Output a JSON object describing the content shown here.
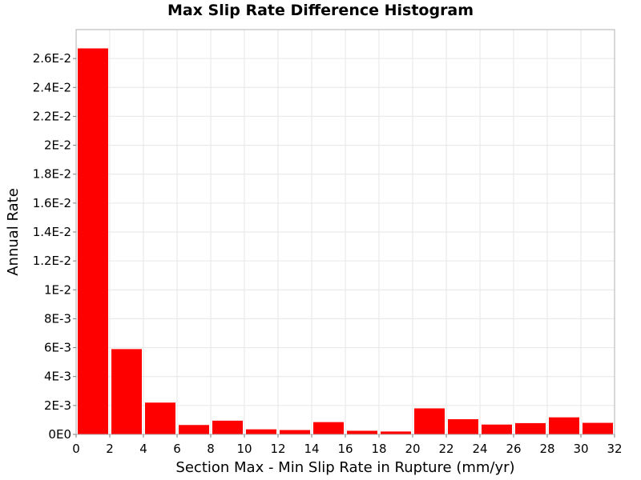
{
  "chart_data": {
    "type": "bar",
    "title": "Max Slip Rate Difference Histogram",
    "xlabel": "Section Max - Min Slip Rate in Rupture (mm/yr)",
    "ylabel": "Annual Rate",
    "xlim": [
      0,
      32
    ],
    "ylim": [
      0,
      0.028
    ],
    "grid": true,
    "legend": "none",
    "bar_color": "#ff0000",
    "x_ticks": [
      0,
      2,
      4,
      6,
      8,
      10,
      12,
      14,
      16,
      18,
      20,
      22,
      24,
      26,
      28,
      30,
      32
    ],
    "x_tick_labels": [
      "0",
      "2",
      "4",
      "6",
      "8",
      "10",
      "12",
      "14",
      "16",
      "18",
      "20",
      "22",
      "24",
      "26",
      "28",
      "30",
      "32"
    ],
    "y_ticks": [
      0,
      0.002,
      0.004,
      0.006,
      0.008,
      0.01,
      0.012,
      0.014,
      0.016,
      0.018,
      0.02,
      0.022,
      0.024,
      0.026
    ],
    "y_tick_labels": [
      "0E0",
      "2E-3",
      "4E-3",
      "6E-3",
      "8E-3",
      "1E-2",
      "1.2E-2",
      "1.4E-2",
      "1.6E-2",
      "1.8E-2",
      "2E-2",
      "2.2E-2",
      "2.4E-2",
      "2.6E-2"
    ],
    "bins": [
      {
        "x0": 0,
        "x1": 2,
        "value": 0.0267
      },
      {
        "x0": 2,
        "x1": 4,
        "value": 0.0059
      },
      {
        "x0": 4,
        "x1": 6,
        "value": 0.0022
      },
      {
        "x0": 6,
        "x1": 8,
        "value": 0.00065
      },
      {
        "x0": 8,
        "x1": 10,
        "value": 0.00095
      },
      {
        "x0": 10,
        "x1": 12,
        "value": 0.00035
      },
      {
        "x0": 12,
        "x1": 14,
        "value": 0.0003
      },
      {
        "x0": 14,
        "x1": 16,
        "value": 0.00085
      },
      {
        "x0": 16,
        "x1": 18,
        "value": 0.00025
      },
      {
        "x0": 18,
        "x1": 20,
        "value": 0.0002
      },
      {
        "x0": 20,
        "x1": 22,
        "value": 0.0018
      },
      {
        "x0": 22,
        "x1": 24,
        "value": 0.00105
      },
      {
        "x0": 24,
        "x1": 26,
        "value": 0.00068
      },
      {
        "x0": 26,
        "x1": 28,
        "value": 0.00078
      },
      {
        "x0": 28,
        "x1": 30,
        "value": 0.00118
      },
      {
        "x0": 30,
        "x1": 32,
        "value": 0.0008
      }
    ]
  }
}
